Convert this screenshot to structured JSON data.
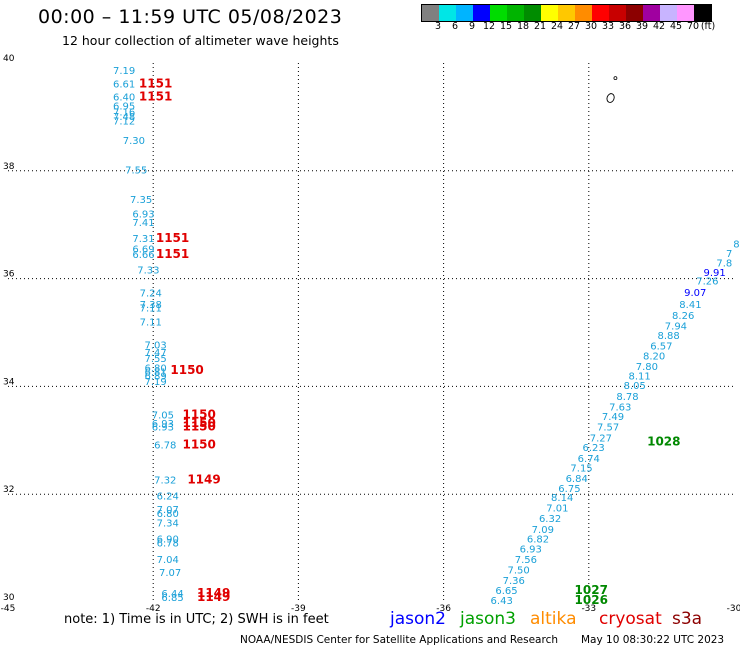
{
  "header": {
    "title": "00:00 – 11:59 UTC 05/08/2023",
    "subtitle": "12 hour collection of altimeter wave heights"
  },
  "colorbar": {
    "colors": [
      "#808080",
      "#00e6e6",
      "#00b4ff",
      "#0000ff",
      "#00dc00",
      "#00b400",
      "#008c00",
      "#ffff00",
      "#ffc800",
      "#ff8c00",
      "#ff0000",
      "#c80000",
      "#8c0000",
      "#a000a0",
      "#c8b4ff",
      "#ff96ff",
      "#000000"
    ],
    "labels": [
      "3",
      "6",
      "9",
      "12",
      "15",
      "18",
      "21",
      "24",
      "27",
      "30",
      "33",
      "36",
      "39",
      "42",
      "45",
      "70",
      "(ft)"
    ]
  },
  "chart_data": {
    "type": "scatter",
    "xlim": [
      -45,
      -30
    ],
    "ylim": [
      30,
      40
    ],
    "x_ticks": [
      "-45",
      "-42",
      "-39",
      "-36",
      "-33",
      "-30"
    ],
    "y_ticks": [
      "30",
      "32",
      "34",
      "36",
      "38",
      "40"
    ],
    "grid": true,
    "swh_color": "#1aa0d8",
    "time_color": "#e00000",
    "swh_track_left": [
      {
        "lon": -42.6,
        "lat": 39.8,
        "v": "7.19"
      },
      {
        "lon": -42.6,
        "lat": 39.55,
        "v": "6.61"
      },
      {
        "lon": -42.6,
        "lat": 39.3,
        "v": "6.40"
      },
      {
        "lon": -42.6,
        "lat": 39.14,
        "v": "6.95"
      },
      {
        "lon": -42.6,
        "lat": 39.03,
        "v": "7.16"
      },
      {
        "lon": -42.6,
        "lat": 38.94,
        "v": "7.48"
      },
      {
        "lon": -42.6,
        "lat": 38.86,
        "v": "7.12"
      },
      {
        "lon": -42.4,
        "lat": 38.5,
        "v": "7.30"
      },
      {
        "lon": -42.35,
        "lat": 37.95,
        "v": "7.55"
      },
      {
        "lon": -42.25,
        "lat": 37.4,
        "v": "7.35"
      },
      {
        "lon": -42.2,
        "lat": 37.13,
        "v": "6.93"
      },
      {
        "lon": -42.2,
        "lat": 36.98,
        "v": "7.41"
      },
      {
        "lon": -42.2,
        "lat": 36.68,
        "v": "7.31"
      },
      {
        "lon": -42.2,
        "lat": 36.48,
        "v": "6.69"
      },
      {
        "lon": -42.2,
        "lat": 36.38,
        "v": "6.66"
      },
      {
        "lon": -42.1,
        "lat": 36.09,
        "v": "7.33"
      },
      {
        "lon": -42.05,
        "lat": 35.67,
        "v": "7.24"
      },
      {
        "lon": -42.05,
        "lat": 35.45,
        "v": "7.38"
      },
      {
        "lon": -42.05,
        "lat": 35.39,
        "v": "7.11"
      },
      {
        "lon": -42.05,
        "lat": 35.13,
        "v": "7.11"
      },
      {
        "lon": -41.95,
        "lat": 34.7,
        "v": "7.03"
      },
      {
        "lon": -41.95,
        "lat": 34.56,
        "v": "7.47"
      },
      {
        "lon": -41.95,
        "lat": 34.45,
        "v": "7.55"
      },
      {
        "lon": -41.95,
        "lat": 34.28,
        "v": "6.80"
      },
      {
        "lon": -41.95,
        "lat": 34.2,
        "v": "6.81"
      },
      {
        "lon": -41.95,
        "lat": 34.13,
        "v": "6.89"
      },
      {
        "lon": -41.95,
        "lat": 34.03,
        "v": "7.19"
      },
      {
        "lon": -41.8,
        "lat": 33.4,
        "v": "7.05"
      },
      {
        "lon": -41.8,
        "lat": 33.25,
        "v": "6.93"
      },
      {
        "lon": -41.8,
        "lat": 33.18,
        "v": "6.93"
      },
      {
        "lon": -41.75,
        "lat": 32.85,
        "v": "6.78"
      },
      {
        "lon": -41.75,
        "lat": 32.2,
        "v": "7.32"
      },
      {
        "lon": -41.7,
        "lat": 31.9,
        "v": "6.24"
      },
      {
        "lon": -41.7,
        "lat": 31.65,
        "v": "7.07"
      },
      {
        "lon": -41.7,
        "lat": 31.58,
        "v": "6.80"
      },
      {
        "lon": -41.7,
        "lat": 31.4,
        "v": "7.34"
      },
      {
        "lon": -41.7,
        "lat": 31.1,
        "v": "6.90"
      },
      {
        "lon": -41.7,
        "lat": 31.03,
        "v": "6.78"
      },
      {
        "lon": -41.7,
        "lat": 30.72,
        "v": "7.04"
      },
      {
        "lon": -41.65,
        "lat": 30.48,
        "v": "7.07"
      },
      {
        "lon": -41.6,
        "lat": 30.09,
        "v": "6.44"
      },
      {
        "lon": -41.6,
        "lat": 30.02,
        "v": "6.85"
      }
    ],
    "time_labels_left": [
      {
        "lon": -41.95,
        "lat": 39.55,
        "v": "1151"
      },
      {
        "lon": -41.95,
        "lat": 39.3,
        "v": "1151"
      },
      {
        "lon": -41.6,
        "lat": 36.68,
        "v": "1151"
      },
      {
        "lon": -41.6,
        "lat": 36.38,
        "v": "1151"
      },
      {
        "lon": -41.3,
        "lat": 34.23,
        "v": "1150"
      },
      {
        "lon": -41.05,
        "lat": 33.4,
        "v": "1150"
      },
      {
        "lon": -41.05,
        "lat": 33.25,
        "v": "1150"
      },
      {
        "lon": -41.05,
        "lat": 33.18,
        "v": "1150"
      },
      {
        "lon": -41.05,
        "lat": 32.85,
        "v": "1150"
      },
      {
        "lon": -40.95,
        "lat": 32.2,
        "v": "1149"
      },
      {
        "lon": -40.75,
        "lat": 30.09,
        "v": "1149"
      },
      {
        "lon": -40.75,
        "lat": 30.02,
        "v": "1149"
      }
    ],
    "swh_track_right": [
      {
        "lon": -29.95,
        "lat": 36.58,
        "v": "8"
      },
      {
        "lon": -30.1,
        "lat": 36.4,
        "v": "7"
      },
      {
        "lon": -30.2,
        "lat": 36.22,
        "v": "7.8"
      },
      {
        "lon": -30.4,
        "lat": 36.05,
        "v": "9.91",
        "c": "#0000ff"
      },
      {
        "lon": -30.55,
        "lat": 35.89,
        "v": "7.26"
      },
      {
        "lon": -30.8,
        "lat": 35.68,
        "v": "9.07",
        "c": "#0000ff"
      },
      {
        "lon": -30.9,
        "lat": 35.45,
        "v": "8.41"
      },
      {
        "lon": -31.05,
        "lat": 35.25,
        "v": "8.26"
      },
      {
        "lon": -31.2,
        "lat": 35.06,
        "v": "7.94"
      },
      {
        "lon": -31.35,
        "lat": 34.88,
        "v": "8.88"
      },
      {
        "lon": -31.5,
        "lat": 34.68,
        "v": "6.57"
      },
      {
        "lon": -31.65,
        "lat": 34.5,
        "v": "8.20"
      },
      {
        "lon": -31.8,
        "lat": 34.3,
        "v": "7.80"
      },
      {
        "lon": -31.95,
        "lat": 34.13,
        "v": "8.11"
      },
      {
        "lon": -32.05,
        "lat": 33.95,
        "v": "8.05"
      },
      {
        "lon": -32.2,
        "lat": 33.75,
        "v": "8.78"
      },
      {
        "lon": -32.35,
        "lat": 33.55,
        "v": "7.63"
      },
      {
        "lon": -32.5,
        "lat": 33.38,
        "v": "7.49"
      },
      {
        "lon": -32.6,
        "lat": 33.18,
        "v": "7.57"
      },
      {
        "lon": -32.75,
        "lat": 32.98,
        "v": "7.27"
      },
      {
        "lon": -32.9,
        "lat": 32.8,
        "v": "6.23"
      },
      {
        "lon": -33.0,
        "lat": 32.6,
        "v": "6.74"
      },
      {
        "lon": -33.15,
        "lat": 32.42,
        "v": "7.15"
      },
      {
        "lon": -33.25,
        "lat": 32.23,
        "v": "6.84"
      },
      {
        "lon": -33.4,
        "lat": 32.04,
        "v": "6.75"
      },
      {
        "lon": -33.55,
        "lat": 31.87,
        "v": "8.14"
      },
      {
        "lon": -33.65,
        "lat": 31.68,
        "v": "7.01"
      },
      {
        "lon": -33.8,
        "lat": 31.48,
        "v": "6.32"
      },
      {
        "lon": -33.95,
        "lat": 31.28,
        "v": "7.09"
      },
      {
        "lon": -34.05,
        "lat": 31.1,
        "v": "6.82"
      },
      {
        "lon": -34.2,
        "lat": 30.92,
        "v": "6.93"
      },
      {
        "lon": -34.3,
        "lat": 30.72,
        "v": "7.56"
      },
      {
        "lon": -34.45,
        "lat": 30.53,
        "v": "7.50"
      },
      {
        "lon": -34.55,
        "lat": 30.33,
        "v": "7.36"
      },
      {
        "lon": -34.7,
        "lat": 30.15,
        "v": "6.65"
      },
      {
        "lon": -34.8,
        "lat": 29.96,
        "v": "6.43"
      }
    ],
    "time_labels_right": [
      {
        "lon": -31.45,
        "lat": 32.9,
        "v": "1028"
      },
      {
        "lon": -32.95,
        "lat": 30.15,
        "v": "1027"
      },
      {
        "lon": -32.95,
        "lat": 29.96,
        "v": "1026"
      }
    ],
    "time_right_color": "#008800"
  },
  "footer": {
    "note": "note: 1) Time is in UTC; 2) SWH is in feet",
    "legend": [
      {
        "name": "jason2",
        "color": "#0000ff"
      },
      {
        "name": "jason3",
        "color": "#00a000"
      },
      {
        "name": "altika",
        "color": "#ff8c00"
      },
      {
        "name": "cryosat",
        "color": "#e00000"
      },
      {
        "name": "s3a",
        "color": "#8c0000"
      }
    ],
    "credit": "NOAA/NESDIS Center for Satellite Applications and Research",
    "timestamp": "May 10 08:30:22 UTC 2023"
  }
}
